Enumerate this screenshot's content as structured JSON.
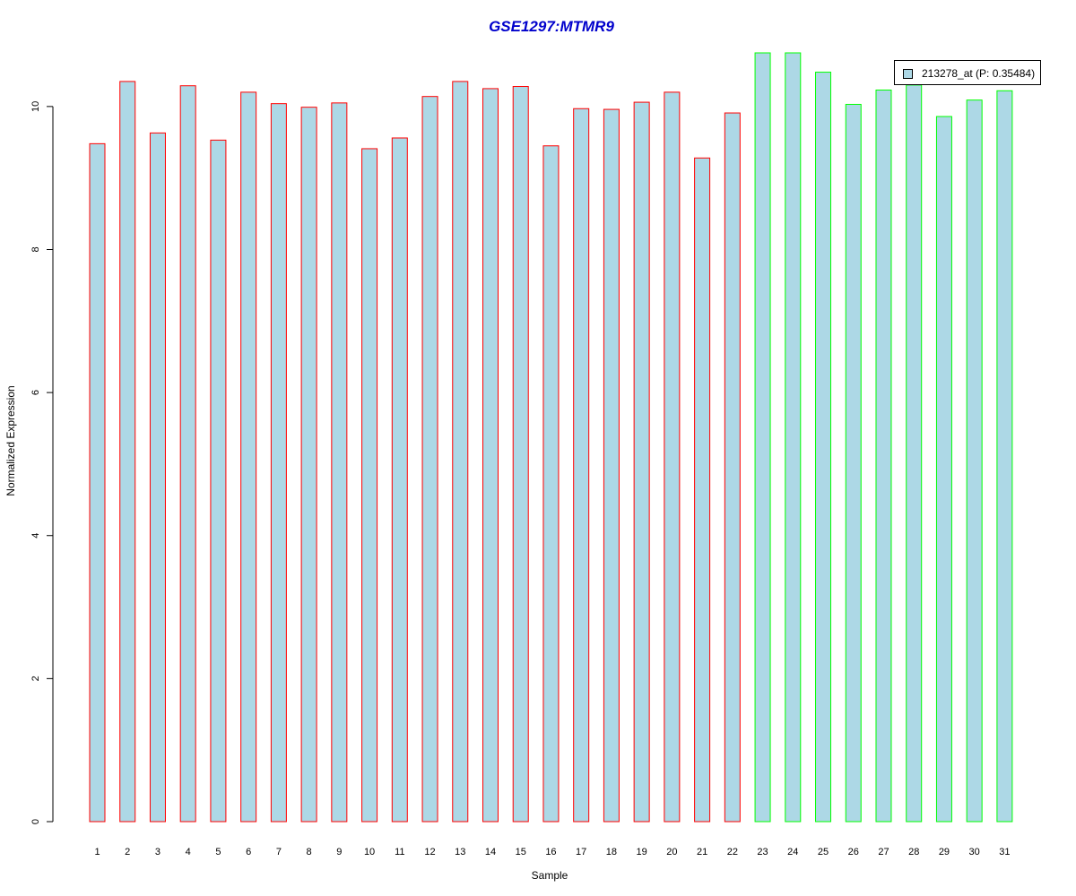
{
  "chart_data": {
    "type": "bar",
    "title": "GSE1297:MTMR9",
    "xlabel": "Sample",
    "ylabel": "Normalized Expression",
    "ylim": [
      0,
      10.8
    ],
    "yticks": [
      0,
      2,
      4,
      6,
      8,
      10
    ],
    "categories": [
      "1",
      "2",
      "3",
      "4",
      "5",
      "6",
      "7",
      "8",
      "9",
      "10",
      "11",
      "12",
      "13",
      "14",
      "15",
      "16",
      "17",
      "18",
      "19",
      "20",
      "21",
      "22",
      "23",
      "24",
      "25",
      "26",
      "27",
      "28",
      "29",
      "30",
      "31"
    ],
    "values": [
      9.48,
      10.35,
      9.63,
      10.29,
      9.53,
      10.2,
      10.04,
      9.99,
      10.05,
      9.41,
      9.56,
      10.14,
      10.35,
      10.25,
      10.28,
      9.45,
      9.97,
      9.96,
      10.06,
      10.2,
      9.28,
      9.91,
      10.75,
      10.75,
      10.48,
      10.03,
      10.23,
      10.3,
      9.86,
      10.09,
      10.22
    ],
    "groups": [
      1,
      1,
      1,
      1,
      1,
      1,
      1,
      1,
      1,
      1,
      1,
      1,
      1,
      1,
      1,
      1,
      1,
      1,
      1,
      1,
      1,
      1,
      2,
      2,
      2,
      2,
      2,
      2,
      2,
      2,
      2
    ],
    "bar_fill": "#add8e6",
    "group_colors": {
      "1": "#ff0000",
      "2": "#00ff00"
    },
    "legend": {
      "label": "213278_at (P: 0.35484)",
      "position": "top-right"
    },
    "title_color": "#0000cc",
    "grid": false
  }
}
